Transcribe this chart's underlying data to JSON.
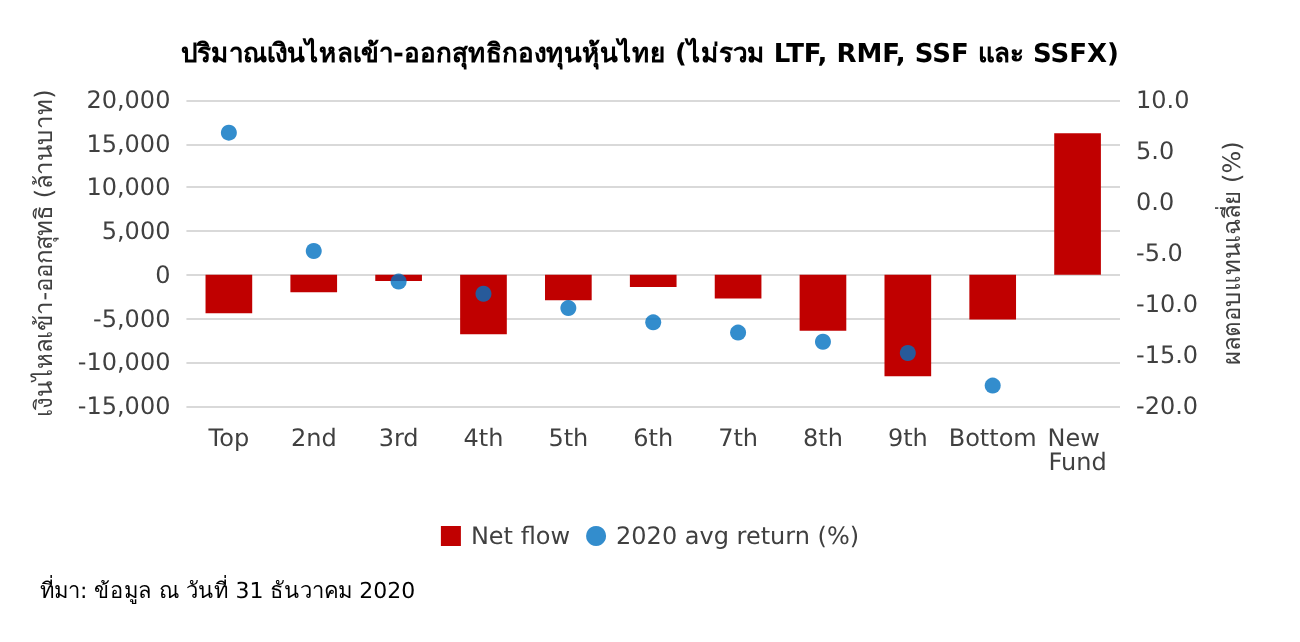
{
  "chart_data": {
    "type": "bar",
    "title": "ปริมาณเงินไหลเข้า-ออกสุทธิกองทุนหุ้นไทย (ไม่รวม LTF, RMF, SSF และ SSFX)",
    "ylabel": "เงินไหลเข้า-ออกสุทธิ (ล้านบาท)",
    "y2label": "ผลตอบแทนเฉลี่ย (%)",
    "categories": [
      "Top",
      "2nd",
      "3rd",
      "4th",
      "5th",
      "6th",
      "7th",
      "8th",
      "9th",
      "Bottom",
      "New Fund"
    ],
    "series": [
      {
        "name": "Net flow",
        "color": "#c00000",
        "values": [
          -4400,
          -2000,
          -700,
          -6800,
          -2900,
          -1400,
          -2700,
          -6400,
          -11600,
          -5100,
          16200
        ]
      },
      {
        "name": "2020 avg return (%)",
        "type": "scatter",
        "axis": "y2",
        "color": "#0070c0",
        "marker": "circle",
        "values": [
          6.8,
          -4.8,
          -7.8,
          -9.0,
          -10.4,
          -11.8,
          -12.8,
          -13.7,
          -14.8,
          -18.0,
          null
        ]
      }
    ],
    "ylim": [
      -15000,
      20000
    ],
    "yticks": [
      {
        "value": -15000,
        "label": "-15,000"
      },
      {
        "value": -10000,
        "label": "-10,000"
      },
      {
        "value": -5000,
        "label": "-5,000"
      },
      0,
      {
        "value": 5000,
        "label": "5,000"
      },
      {
        "value": 10000,
        "label": "10,000"
      },
      {
        "value": 15000,
        "label": "15,000"
      },
      {
        "value": 20000,
        "label": "20,000"
      }
    ],
    "y2lim": [
      -20,
      10
    ],
    "y2ticks": [
      {
        "value": -20,
        "label": "-20.0"
      },
      {
        "value": -15,
        "label": "-15.0"
      },
      {
        "value": -10,
        "label": "-10.0"
      },
      {
        "value": -5,
        "label": "-5.0"
      },
      {
        "value": 0,
        "label": "0.0"
      },
      {
        "value": 5,
        "label": "5.0"
      },
      {
        "value": 10,
        "label": "10.0"
      }
    ],
    "grid": "y",
    "legend": "bottom",
    "annotations": [
      "ที่มา: ข้อมูล ณ วันที่ 31 ธันวาคม 2020"
    ]
  }
}
